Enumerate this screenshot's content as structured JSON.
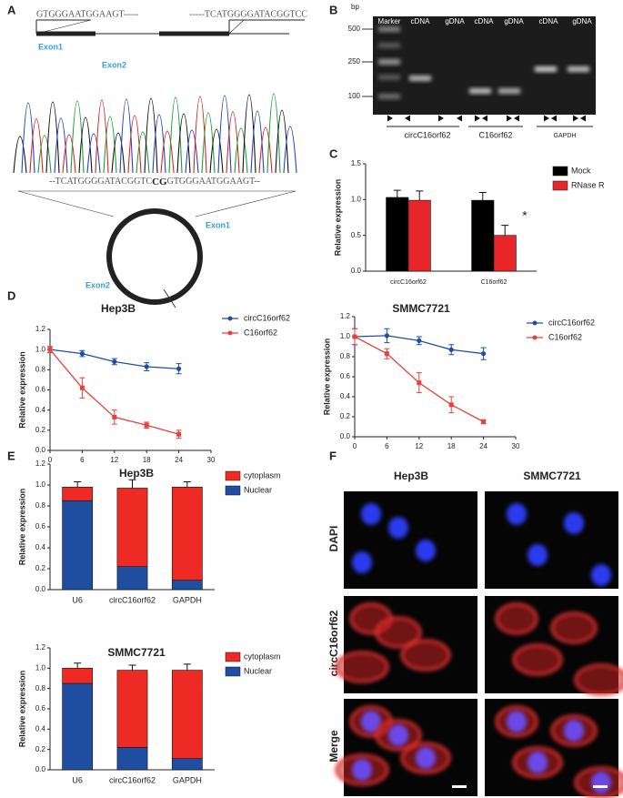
{
  "panels": {
    "letters": [
      "A",
      "B",
      "C",
      "D",
      "E",
      "F"
    ],
    "a": {
      "seq_left": "GTGGGAATGGAAGT-----",
      "seq_right": "-----TCATGGGGATACGGTCC",
      "exon1": "Exon1",
      "exon2": "Exon2",
      "junction": [
        "--TCATGGGGATACGGTC",
        "CG",
        "GTGGGAATGGAAGT--"
      ],
      "circle_exon1": "Exon1",
      "circle_exon2": "Exon2"
    },
    "b": {
      "unit": "bp",
      "lanes": [
        "Marker",
        "cDNA",
        "gDNA",
        "cDNA",
        "gDNA",
        "cDNA",
        "gDNA"
      ],
      "markers": [
        500,
        250,
        100
      ],
      "groups": [
        "circC16orf62",
        "C16orf62",
        "GAPDH"
      ]
    },
    "f": {
      "columns": [
        "Hep3B",
        "SMMC7721"
      ],
      "rows": [
        "DAPI",
        "circC16orf62",
        "Merge"
      ]
    }
  },
  "chart_data": [
    {
      "type": "bar",
      "ylabel": "Relative expression",
      "categories": [
        "circC16orf62",
        "C16orf62"
      ],
      "series": [
        {
          "name": "Mock",
          "color": "#000000",
          "values": [
            1.03,
            0.99
          ],
          "errors": [
            0.1,
            0.11
          ]
        },
        {
          "name": "RNase R",
          "color": "#e8262a",
          "values": [
            0.99,
            0.5
          ],
          "errors": [
            0.13,
            0.14
          ]
        }
      ],
      "ylim": [
        0,
        1.5
      ],
      "yticks": [
        {
          "value": 0,
          "label": "0.0"
        },
        {
          "value": 0.5,
          "label": "0.5"
        },
        {
          "value": 1,
          "label": "1.0"
        },
        {
          "value": 1.5,
          "label": "1.5"
        }
      ],
      "annotations": [
        "*"
      ]
    },
    {
      "type": "line",
      "title": "Hep3B",
      "ylabel": "Relative expression",
      "x": [
        0,
        6,
        12,
        18,
        24
      ],
      "xlim": [
        0,
        30
      ],
      "xticks": [
        0,
        6,
        12,
        18,
        24,
        30
      ],
      "series": [
        {
          "name": "circC16orf62",
          "color": "#1f4ea0",
          "values": [
            1.0,
            0.96,
            0.88,
            0.83,
            0.81
          ],
          "errors": [
            0.03,
            0.03,
            0.03,
            0.04,
            0.05
          ]
        },
        {
          "name": "C16orf62",
          "color": "#e8413c",
          "values": [
            1.0,
            0.62,
            0.33,
            0.25,
            0.16
          ],
          "errors": [
            0.03,
            0.1,
            0.07,
            0.03,
            0.04
          ]
        }
      ],
      "ylim": [
        0,
        1.2
      ],
      "yticks": [
        {
          "value": 0,
          "label": "0.0"
        },
        {
          "value": 0.2,
          "label": "0.2"
        },
        {
          "value": 0.4,
          "label": "0.4"
        },
        {
          "value": 0.6,
          "label": "0.6"
        },
        {
          "value": 0.8,
          "label": "0.8"
        },
        {
          "value": 1,
          "label": "1.0"
        },
        {
          "value": 1.2,
          "label": "1.2"
        }
      ]
    },
    {
      "type": "line",
      "title": "SMMC7721",
      "ylabel": "Relative expression",
      "x": [
        0,
        6,
        12,
        18,
        24
      ],
      "xlim": [
        0,
        30
      ],
      "xticks": [
        0,
        6,
        12,
        18,
        24,
        30
      ],
      "series": [
        {
          "name": "circC16orf62",
          "color": "#1f4ea0",
          "values": [
            1.0,
            1.01,
            0.96,
            0.87,
            0.83
          ],
          "errors": [
            0.08,
            0.07,
            0.04,
            0.05,
            0.06
          ]
        },
        {
          "name": "C16orf62",
          "color": "#e8413c",
          "values": [
            1.0,
            0.83,
            0.54,
            0.32,
            0.15
          ],
          "errors": [
            0.08,
            0.05,
            0.1,
            0.08,
            0.02
          ]
        }
      ],
      "ylim": [
        0,
        1.2
      ],
      "yticks": [
        {
          "value": 0,
          "label": "0.0"
        },
        {
          "value": 0.2,
          "label": "0.2"
        },
        {
          "value": 0.4,
          "label": "0.4"
        },
        {
          "value": 0.6,
          "label": "0.6"
        },
        {
          "value": 0.8,
          "label": "0.8"
        },
        {
          "value": 1,
          "label": "1.0"
        },
        {
          "value": 1.2,
          "label": "1.2"
        }
      ]
    },
    {
      "type": "bar",
      "stacked": true,
      "title": "Hep3B",
      "ylabel": "Relative expression",
      "categories": [
        "U6",
        "circC16orf62",
        "GAPDH"
      ],
      "series": [
        {
          "name": "Nuclear",
          "color": "#1f4ea0",
          "values": [
            0.85,
            0.22,
            0.09
          ],
          "errors": [
            0.04,
            0.07,
            0.06
          ]
        },
        {
          "name": "cytoplasm",
          "color": "#ee2a24",
          "values": [
            0.13,
            0.75,
            0.89
          ],
          "errors": [
            0.05,
            0.08,
            0.05
          ]
        }
      ],
      "ylim": [
        0,
        1.2
      ],
      "yticks": [
        {
          "value": 0,
          "label": "0.0"
        },
        {
          "value": 0.2,
          "label": "0.2"
        },
        {
          "value": 0.4,
          "label": "0.4"
        },
        {
          "value": 0.6,
          "label": "0.6"
        },
        {
          "value": 0.8,
          "label": "0.8"
        },
        {
          "value": 1,
          "label": "1.0"
        },
        {
          "value": 1.2,
          "label": "1.2"
        }
      ]
    },
    {
      "type": "bar",
      "stacked": true,
      "title": "SMMC7721",
      "ylabel": "Relative expression",
      "categories": [
        "U6",
        "circC16orf62",
        "GAPDH"
      ],
      "series": [
        {
          "name": "Nuclear",
          "color": "#1f4ea0",
          "values": [
            0.85,
            0.22,
            0.11
          ],
          "errors": [
            0.02,
            0.09,
            0.01
          ]
        },
        {
          "name": "cytoplasm",
          "color": "#ee2a24",
          "values": [
            0.15,
            0.76,
            0.87
          ],
          "errors": [
            0.05,
            0.05,
            0.06
          ]
        }
      ],
      "ylim": [
        0,
        1.2
      ],
      "yticks": [
        {
          "value": 0,
          "label": "0.0"
        },
        {
          "value": 0.2,
          "label": "0.2"
        },
        {
          "value": 0.4,
          "label": "0.4"
        },
        {
          "value": 0.6,
          "label": "0.6"
        },
        {
          "value": 0.8,
          "label": "0.8"
        },
        {
          "value": 1,
          "label": "1.0"
        },
        {
          "value": 1.2,
          "label": "1.2"
        }
      ]
    }
  ]
}
